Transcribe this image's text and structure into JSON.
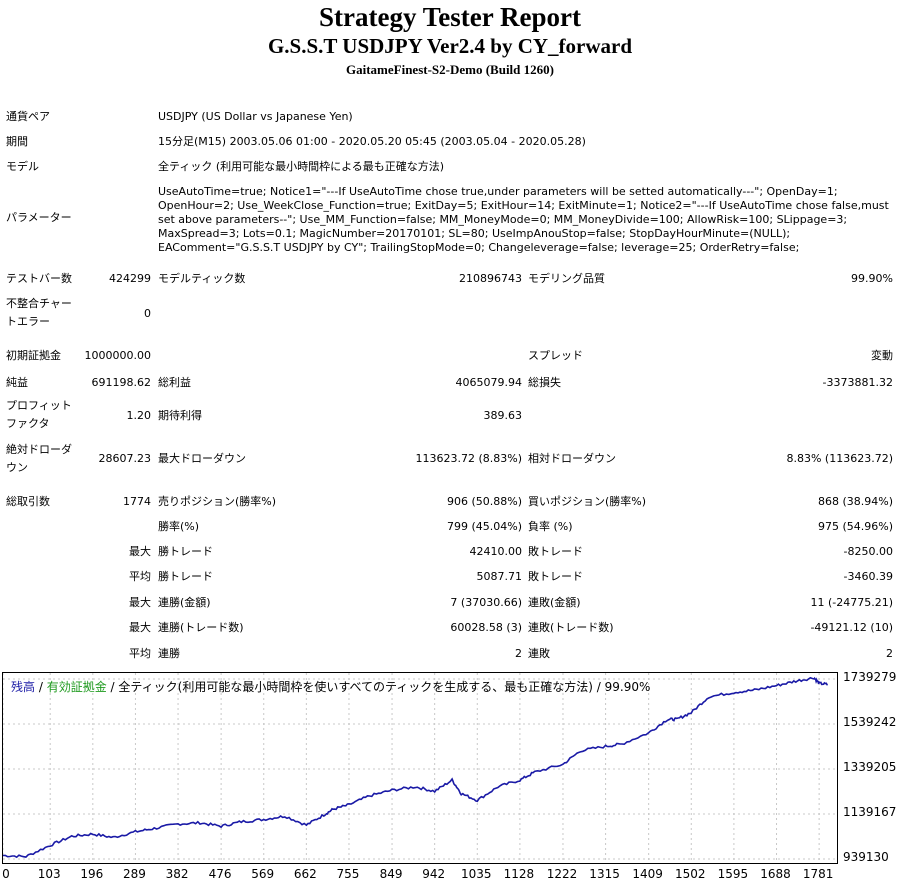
{
  "header": {
    "title": "Strategy Tester Report",
    "subtitle": "G.S.S.T USDJPY Ver2.4 by CY_forward",
    "server": "GaitameFinest-S2-Demo (Build 1260)"
  },
  "info": {
    "pair_label": "通貨ペア",
    "pair_value": "USDJPY (US Dollar vs Japanese Yen)",
    "period_label": "期間",
    "period_value": "15分足(M15) 2003.05.06 01:00 - 2020.05.20 05:45 (2003.05.04 - 2020.05.28)",
    "model_label": "モデル",
    "model_value": "全ティック (利用可能な最小時間枠による最も正確な方法)",
    "params_label": "パラメーター",
    "params_value": "UseAutoTime=true; Notice1=\"---If UseAutoTime chose true,under parameters will be setted automatically---\"; OpenDay=1; OpenHour=2; Use_WeekClose_Function=true; ExitDay=5; ExitHour=14; ExitMinute=1; Notice2=\"---If UseAutoTime chose false,must set above parameters--\"; Use_MM_Function=false; MM_MoneyMode=0; MM_MoneyDivide=100; AllowRisk=100; SLippage=3; MaxSpread=3; Lots=0.1; MagicNumber=20170101; SL=80; UseImpAnouStop=false; StopDayHourMinute=(NULL); EAComment=\"G.S.S.T USDJPY by CY\"; TrailingStopMode=0; Changeleverage=false; leverage=25; OrderRetry=false;"
  },
  "stats": {
    "bars_label": "テストバー数",
    "bars_value": "424299",
    "ticks_label": "モデルティック数",
    "ticks_value": "210896743",
    "quality_label": "モデリング品質",
    "quality_value": "99.90%",
    "mismatch_label_1": "不整合チャー",
    "mismatch_label_2": "トエラー",
    "mismatch_value": "0",
    "deposit_label": "初期証拠金",
    "deposit_value": "1000000.00",
    "spread_label": "スプレッド",
    "spread_value": "変動",
    "net_label": "純益",
    "net_value": "691198.62",
    "gross_profit_label": "総利益",
    "gross_profit_value": "4065079.94",
    "gross_loss_label": "総損失",
    "gross_loss_value": "-3373881.32",
    "pf_label_1": "プロフィット",
    "pf_label_2": "ファクタ",
    "pf_value": "1.20",
    "expected_label": "期待利得",
    "expected_value": "389.63",
    "abs_dd_label_1": "絶対ドローダ",
    "abs_dd_label_2": "ウン",
    "abs_dd_value": "28607.23",
    "max_dd_label": "最大ドローダウン",
    "max_dd_value": "113623.72 (8.83%)",
    "rel_dd_label": "相対ドローダウン",
    "rel_dd_value": "8.83% (113623.72)",
    "total_trades_label": "総取引数",
    "total_trades_value": "1774",
    "short_label": "売りポジション(勝率%)",
    "short_value": "906 (50.88%)",
    "long_label": "買いポジション(勝率%)",
    "long_value": "868 (38.94%)",
    "win_rate_label": "勝率(%)",
    "win_rate_value": "799 (45.04%)",
    "loss_rate_label": "負率 (%)",
    "loss_rate_value": "975 (54.96%)",
    "max_prefix": "最大",
    "avg_prefix": "平均",
    "largest_win_label": "勝トレード",
    "largest_win_value": "42410.00",
    "largest_loss_label": "敗トレード",
    "largest_loss_value": "-8250.00",
    "avg_win_label": "勝トレード",
    "avg_win_value": "5087.71",
    "avg_loss_label": "敗トレード",
    "avg_loss_value": "-3460.39",
    "max_consec_win_amt_label": "連勝(金額)",
    "max_consec_win_amt_value": "7 (37030.66)",
    "max_consec_loss_amt_label": "連敗(金額)",
    "max_consec_loss_amt_value": "11 (-24775.21)",
    "max_consec_win_cnt_label": "連勝(トレード数)",
    "max_consec_win_cnt_value": "60028.58 (3)",
    "max_consec_loss_cnt_label": "連敗(トレード数)",
    "max_consec_loss_cnt_value": "-49121.12 (10)",
    "avg_consec_win_label": "連勝",
    "avg_consec_win_value": "2",
    "avg_consec_loss_label": "連敗",
    "avg_consec_loss_value": "2"
  },
  "chart_legend": {
    "balance": "残高",
    "sep1": " / ",
    "equity": "有効証拠金",
    "rest": " / 全ティック(利用可能な最小時間枠を使いすべてのティックを生成する、最も正確な方法) / 99.90%"
  },
  "chart_data": {
    "type": "line",
    "series": [
      {
        "name": "残高",
        "x": [
          0,
          50,
          103,
          150,
          196,
          240,
          289,
          330,
          382,
          430,
          476,
          520,
          569,
          615,
          662,
          700,
          720,
          755,
          800,
          849,
          900,
          942,
          980,
          1000,
          1035,
          1080,
          1128,
          1160,
          1222,
          1260,
          1315,
          1350,
          1409,
          1450,
          1470,
          1502,
          1540,
          1595,
          1640,
          1688,
          1730,
          1770,
          1781,
          1800
        ],
        "y": [
          955000,
          950000,
          1000000,
          1040000,
          1050000,
          1035000,
          1060000,
          1075000,
          1095000,
          1100000,
          1085000,
          1105000,
          1115000,
          1130000,
          1090000,
          1135000,
          1160000,
          1180000,
          1220000,
          1245000,
          1260000,
          1240000,
          1290000,
          1230000,
          1200000,
          1260000,
          1290000,
          1325000,
          1360000,
          1420000,
          1440000,
          1450000,
          1500000,
          1560000,
          1560000,
          1590000,
          1660000,
          1680000,
          1690000,
          1710000,
          1730000,
          1745000,
          1720000,
          1715000
        ]
      }
    ],
    "x_ticks": [
      "0",
      "103",
      "196",
      "289",
      "382",
      "476",
      "569",
      "662",
      "755",
      "849",
      "942",
      "1035",
      "1128",
      "1222",
      "1315",
      "1409",
      "1502",
      "1595",
      "1688",
      "1781"
    ],
    "y_ticks": [
      "1739279",
      "1539242",
      "1339205",
      "1139167",
      "939130"
    ],
    "ylim": [
      939130,
      1739279
    ],
    "xlim": [
      0,
      1820
    ],
    "grid": true,
    "colors": {
      "line": "#1a1aa6",
      "grid": "#c8c8c8",
      "balance_label": "#1a1aa6",
      "equity_label": "#1f9a1f"
    }
  }
}
